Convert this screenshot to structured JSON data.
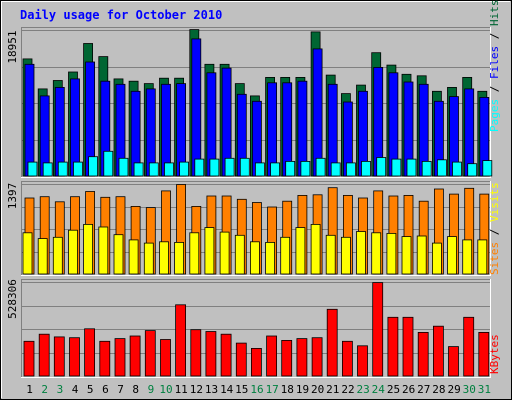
{
  "title": "Daily usage for October 2010",
  "colors": {
    "background": "#c0c0c0",
    "title": "#0000ff",
    "hits": "#006633",
    "files": "#0000ff",
    "pages": "#00ffff",
    "visits": "#ffff00",
    "sites": "#ff8000",
    "kbytes": "#ff0000",
    "weekend_label": "#008040",
    "weekday_label": "#000000",
    "grid": "#808080"
  },
  "chart_data": [
    {
      "type": "bar",
      "panel": "hits-files-pages",
      "y_label": "18951",
      "ylim": [
        0,
        18951
      ],
      "right_label_parts": [
        {
          "text": "Pages",
          "color": "#00ffff"
        },
        {
          "text": " / ",
          "color": "#000000"
        },
        {
          "text": "Files",
          "color": "#0000ff"
        },
        {
          "text": " / ",
          "color": "#000000"
        },
        {
          "text": "Hits",
          "color": "#006633"
        }
      ],
      "categories": [
        "1",
        "2",
        "3",
        "4",
        "5",
        "6",
        "7",
        "8",
        "9",
        "10",
        "11",
        "12",
        "13",
        "14",
        "15",
        "16",
        "17",
        "18",
        "19",
        "20",
        "21",
        "22",
        "23",
        "24",
        "25",
        "26",
        "27",
        "28",
        "29",
        "30",
        "31"
      ],
      "series": [
        {
          "name": "Hits",
          "values": [
            15200,
            11300,
            12400,
            13500,
            17200,
            15500,
            12600,
            12300,
            12000,
            12700,
            12700,
            19000,
            14500,
            14500,
            12000,
            10400,
            12800,
            12800,
            12800,
            18700,
            13100,
            10700,
            11800,
            16000,
            14400,
            13200,
            13000,
            11000,
            11500,
            12800,
            11000
          ]
        },
        {
          "name": "Files",
          "values": [
            14500,
            10400,
            11500,
            12600,
            14800,
            12300,
            11900,
            11000,
            11300,
            11900,
            12000,
            17800,
            13400,
            14000,
            10600,
            9700,
            12100,
            12100,
            12300,
            16500,
            11900,
            9600,
            11000,
            14100,
            13400,
            12200,
            11900,
            9700,
            10300,
            11300,
            10200
          ]
        },
        {
          "name": "Pages",
          "values": [
            1800,
            1700,
            1800,
            1800,
            2500,
            3200,
            2300,
            1700,
            1700,
            1700,
            1800,
            2200,
            2200,
            2300,
            2300,
            1700,
            1700,
            1900,
            1900,
            2300,
            1700,
            1700,
            1900,
            2400,
            2200,
            2200,
            1900,
            2100,
            1800,
            1600,
            2000
          ]
        }
      ]
    },
    {
      "type": "bar",
      "panel": "visits-sites",
      "y_label": "1397",
      "ylim": [
        0,
        1397
      ],
      "right_label_parts": [
        {
          "text": "Sites",
          "color": "#ff8000"
        },
        {
          "text": " / ",
          "color": "#000000"
        },
        {
          "text": "Visits",
          "color": "#ffff00"
        }
      ],
      "categories": [
        "1",
        "2",
        "3",
        "4",
        "5",
        "6",
        "7",
        "8",
        "9",
        "10",
        "11",
        "12",
        "13",
        "14",
        "15",
        "16",
        "17",
        "18",
        "19",
        "20",
        "21",
        "22",
        "23",
        "24",
        "25",
        "26",
        "27",
        "28",
        "29",
        "30",
        "31"
      ],
      "series": [
        {
          "name": "Sites",
          "values": [
            1180,
            1200,
            1120,
            1200,
            1280,
            1190,
            1200,
            1050,
            1030,
            1290,
            1390,
            1050,
            1210,
            1210,
            1160,
            1110,
            1040,
            1130,
            1220,
            1230,
            1340,
            1220,
            1180,
            1290,
            1210,
            1220,
            1130,
            1320,
            1240,
            1330,
            1240
          ]
        },
        {
          "name": "Visits",
          "values": [
            640,
            550,
            570,
            680,
            770,
            730,
            610,
            530,
            480,
            500,
            490,
            640,
            720,
            650,
            600,
            500,
            490,
            570,
            720,
            770,
            600,
            570,
            660,
            640,
            630,
            580,
            590,
            480,
            580,
            530,
            530
          ]
        }
      ]
    },
    {
      "type": "bar",
      "panel": "kbytes",
      "y_label": "528306",
      "ylim": [
        0,
        528306
      ],
      "right_label_parts": [
        {
          "text": "KBytes",
          "color": "#ff0000"
        }
      ],
      "categories": [
        "1",
        "2",
        "3",
        "4",
        "5",
        "6",
        "7",
        "8",
        "9",
        "10",
        "11",
        "12",
        "13",
        "14",
        "15",
        "16",
        "17",
        "18",
        "19",
        "20",
        "21",
        "22",
        "23",
        "24",
        "25",
        "26",
        "27",
        "28",
        "29",
        "30",
        "31"
      ],
      "series": [
        {
          "name": "KBytes",
          "values": [
            195000,
            235000,
            220000,
            215000,
            265000,
            195000,
            210000,
            225000,
            255000,
            205000,
            400000,
            260000,
            250000,
            235000,
            185000,
            155000,
            225000,
            200000,
            210000,
            215000,
            375000,
            195000,
            170000,
            525000,
            330000,
            330000,
            245000,
            280000,
            165000,
            330000,
            245000
          ]
        }
      ]
    }
  ],
  "day_labels": [
    {
      "text": "1",
      "weekend": false
    },
    {
      "text": "2",
      "weekend": true
    },
    {
      "text": "3",
      "weekend": true
    },
    {
      "text": "4",
      "weekend": false
    },
    {
      "text": "5",
      "weekend": false
    },
    {
      "text": "6",
      "weekend": false
    },
    {
      "text": "7",
      "weekend": false
    },
    {
      "text": "8",
      "weekend": false
    },
    {
      "text": "9",
      "weekend": true
    },
    {
      "text": "10",
      "weekend": true
    },
    {
      "text": "11",
      "weekend": false
    },
    {
      "text": "12",
      "weekend": false
    },
    {
      "text": "13",
      "weekend": false
    },
    {
      "text": "14",
      "weekend": false
    },
    {
      "text": "15",
      "weekend": false
    },
    {
      "text": "16",
      "weekend": true
    },
    {
      "text": "17",
      "weekend": true
    },
    {
      "text": "18",
      "weekend": false
    },
    {
      "text": "19",
      "weekend": false
    },
    {
      "text": "20",
      "weekend": false
    },
    {
      "text": "21",
      "weekend": false
    },
    {
      "text": "22",
      "weekend": false
    },
    {
      "text": "23",
      "weekend": true
    },
    {
      "text": "24",
      "weekend": true
    },
    {
      "text": "25",
      "weekend": false
    },
    {
      "text": "26",
      "weekend": false
    },
    {
      "text": "27",
      "weekend": false
    },
    {
      "text": "28",
      "weekend": false
    },
    {
      "text": "29",
      "weekend": false
    },
    {
      "text": "30",
      "weekend": true
    },
    {
      "text": "31",
      "weekend": true
    }
  ]
}
